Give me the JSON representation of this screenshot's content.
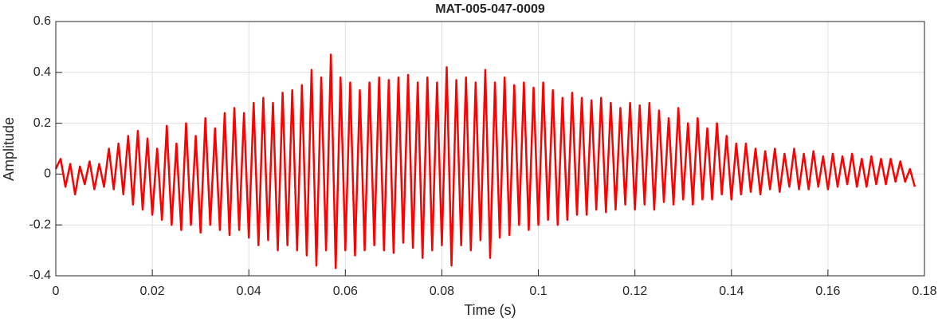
{
  "chart_data": {
    "type": "line",
    "title": "MAT-005-047-0009",
    "x_label": "Time (s)",
    "y_label": "Amplitude",
    "color": "#ff0000",
    "grid": true,
    "xlim": [
      0,
      0.18
    ],
    "xticks": [
      0,
      0.02,
      0.04,
      0.06,
      0.08,
      0.1,
      0.12,
      0.14,
      0.16,
      0.18
    ],
    "ylim": [
      -0.4,
      0.6
    ],
    "yticks": [
      -0.4,
      -0.2,
      0,
      0.2,
      0.4,
      0.6
    ],
    "x": [
      0,
      0.001,
      0.002,
      0.003,
      0.004,
      0.005,
      0.006,
      0.007,
      0.008,
      0.009,
      0.01,
      0.011,
      0.012,
      0.013,
      0.014,
      0.015,
      0.016,
      0.017,
      0.018,
      0.019,
      0.02,
      0.021,
      0.022,
      0.023,
      0.024,
      0.025,
      0.026,
      0.027,
      0.028,
      0.029,
      0.03,
      0.031,
      0.032,
      0.033,
      0.034,
      0.035,
      0.036,
      0.037,
      0.038,
      0.039,
      0.04,
      0.041,
      0.042,
      0.043,
      0.044,
      0.045,
      0.046,
      0.047,
      0.048,
      0.049,
      0.05,
      0.051,
      0.052,
      0.053,
      0.054,
      0.055,
      0.056,
      0.057,
      0.058,
      0.059,
      0.06,
      0.061,
      0.062,
      0.063,
      0.064,
      0.065,
      0.066,
      0.067,
      0.068,
      0.069,
      0.07,
      0.071,
      0.072,
      0.073,
      0.074,
      0.075,
      0.076,
      0.077,
      0.078,
      0.079,
      0.08,
      0.081,
      0.082,
      0.083,
      0.084,
      0.085,
      0.086,
      0.087,
      0.088,
      0.089,
      0.09,
      0.091,
      0.092,
      0.093,
      0.094,
      0.095,
      0.096,
      0.097,
      0.098,
      0.099,
      0.1,
      0.101,
      0.102,
      0.103,
      0.104,
      0.105,
      0.106,
      0.107,
      0.108,
      0.109,
      0.11,
      0.111,
      0.112,
      0.113,
      0.114,
      0.115,
      0.116,
      0.117,
      0.118,
      0.119,
      0.12,
      0.121,
      0.122,
      0.123,
      0.124,
      0.125,
      0.126,
      0.127,
      0.128,
      0.129,
      0.13,
      0.131,
      0.132,
      0.133,
      0.134,
      0.135,
      0.136,
      0.137,
      0.138,
      0.139,
      0.14,
      0.141,
      0.142,
      0.143,
      0.144,
      0.145,
      0.146,
      0.147,
      0.148,
      0.149,
      0.15,
      0.151,
      0.152,
      0.153,
      0.154,
      0.155,
      0.156,
      0.157,
      0.158,
      0.159,
      0.16,
      0.161,
      0.162,
      0.163,
      0.164,
      0.165,
      0.166,
      0.167,
      0.168,
      0.169,
      0.17,
      0.171,
      0.172,
      0.173,
      0.174,
      0.175,
      0.176,
      0.177,
      0.178
    ],
    "values": [
      0.02,
      0.06,
      -0.05,
      0.04,
      -0.08,
      0.03,
      -0.04,
      0.05,
      -0.06,
      0.04,
      -0.05,
      0.1,
      -0.06,
      0.12,
      -0.08,
      0.15,
      -0.12,
      0.17,
      -0.14,
      0.14,
      -0.16,
      0.1,
      -0.18,
      0.19,
      -0.2,
      0.12,
      -0.22,
      0.2,
      -0.2,
      0.15,
      -0.23,
      0.22,
      -0.2,
      0.18,
      -0.22,
      0.24,
      -0.24,
      0.26,
      -0.22,
      0.24,
      -0.25,
      0.28,
      -0.28,
      0.3,
      -0.26,
      0.28,
      -0.3,
      0.32,
      -0.28,
      0.33,
      -0.3,
      0.35,
      -0.32,
      0.41,
      -0.36,
      0.38,
      -0.3,
      0.47,
      -0.37,
      0.38,
      -0.3,
      0.36,
      -0.32,
      0.33,
      -0.3,
      0.36,
      -0.28,
      0.38,
      -0.3,
      0.37,
      -0.31,
      0.38,
      -0.27,
      0.39,
      -0.29,
      0.36,
      -0.33,
      0.38,
      -0.3,
      0.36,
      -0.28,
      0.42,
      -0.36,
      0.37,
      -0.28,
      0.38,
      -0.3,
      0.36,
      -0.26,
      0.41,
      -0.33,
      0.36,
      -0.25,
      0.38,
      -0.24,
      0.35,
      -0.2,
      0.36,
      -0.22,
      0.34,
      -0.2,
      0.36,
      -0.18,
      0.33,
      -0.2,
      0.3,
      -0.18,
      0.32,
      -0.16,
      0.3,
      -0.16,
      0.29,
      -0.14,
      0.3,
      -0.15,
      0.28,
      -0.14,
      0.26,
      -0.12,
      0.28,
      -0.14,
      0.27,
      -0.12,
      0.28,
      -0.14,
      0.25,
      -0.11,
      0.22,
      -0.12,
      0.26,
      -0.1,
      0.2,
      -0.12,
      0.22,
      -0.1,
      0.18,
      -0.1,
      0.2,
      -0.08,
      0.15,
      -0.1,
      0.12,
      -0.08,
      0.12,
      -0.07,
      0.1,
      -0.08,
      0.09,
      -0.06,
      0.1,
      -0.07,
      0.08,
      -0.05,
      0.1,
      -0.06,
      0.08,
      -0.06,
      0.09,
      -0.05,
      0.07,
      -0.06,
      0.08,
      -0.05,
      0.07,
      -0.04,
      0.08,
      -0.05,
      0.06,
      -0.05,
      0.07,
      -0.04,
      0.06,
      -0.04,
      0.06,
      -0.03,
      0.05,
      -0.03,
      0.02,
      -0.05
    ]
  }
}
